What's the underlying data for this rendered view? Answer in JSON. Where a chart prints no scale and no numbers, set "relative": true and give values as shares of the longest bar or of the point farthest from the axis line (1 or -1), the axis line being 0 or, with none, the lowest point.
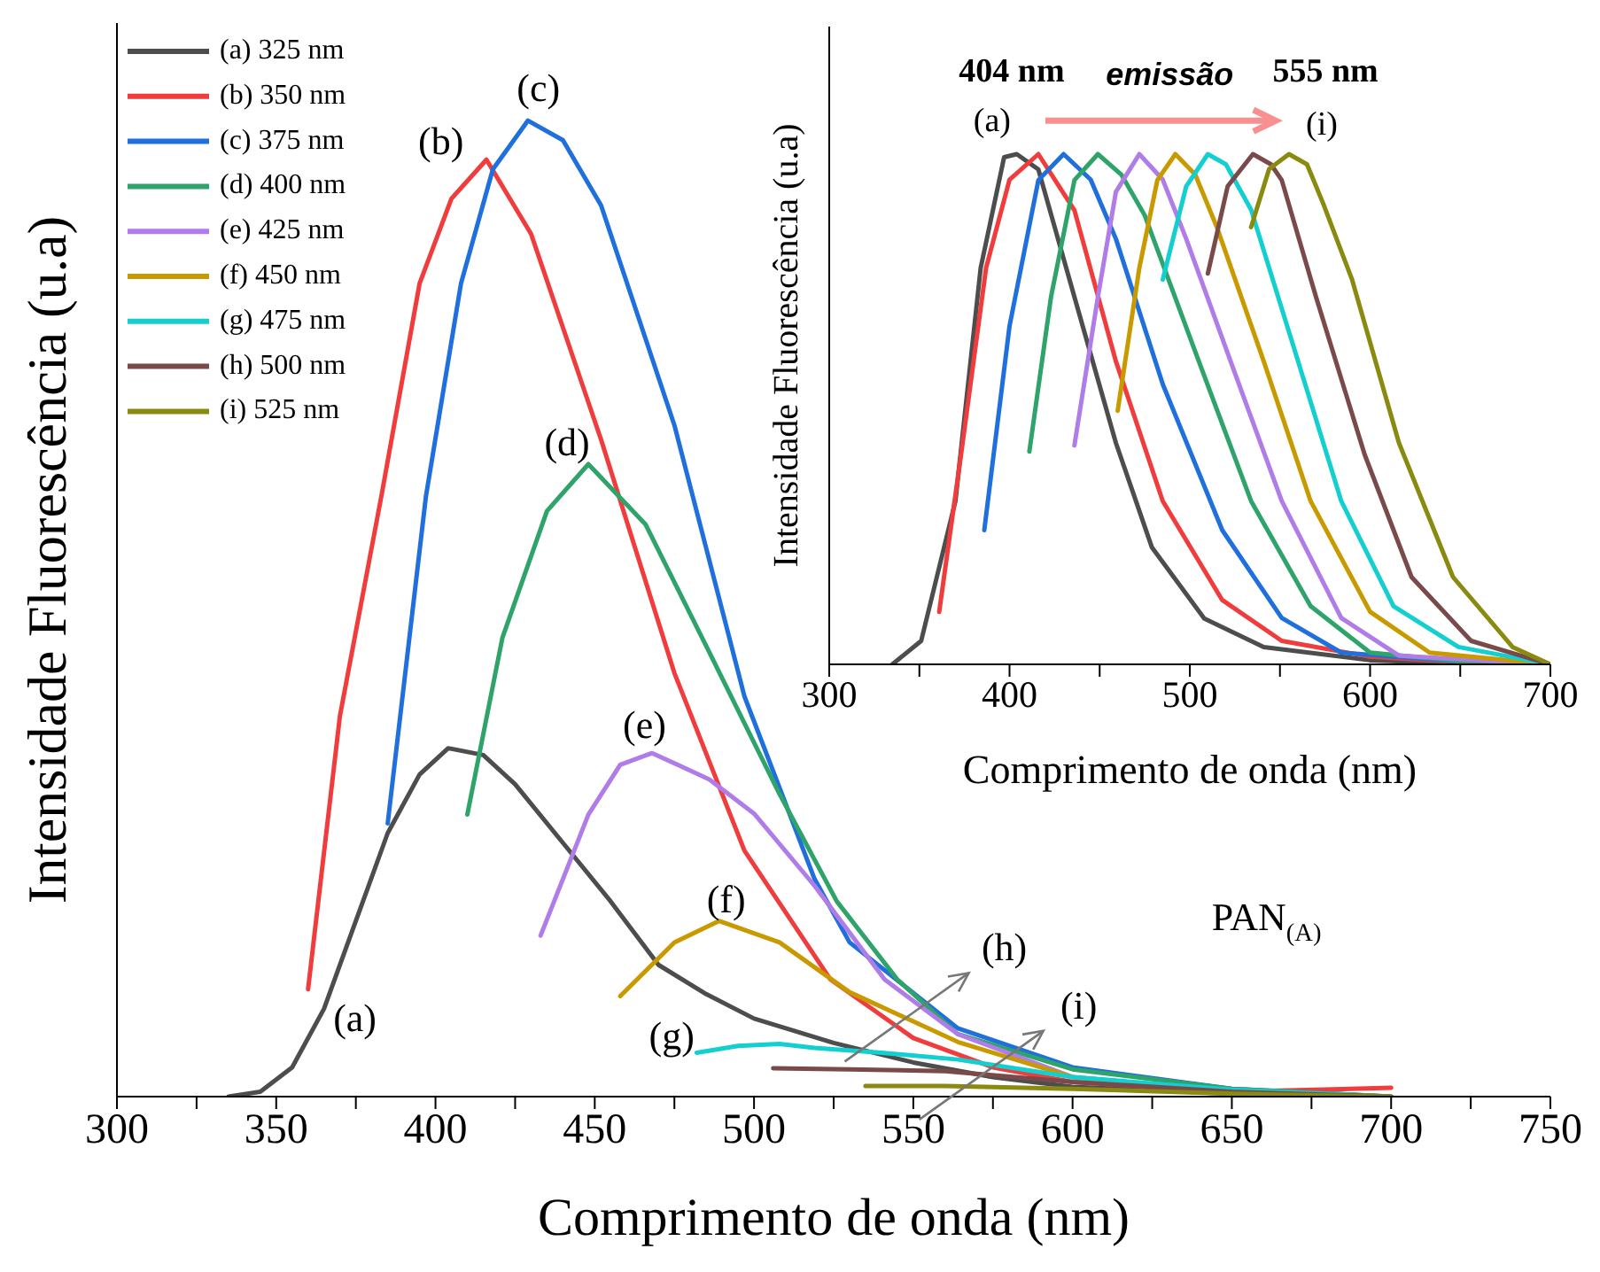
{
  "chart_data": [
    {
      "type": "line",
      "xlabel": "Comprimento de onda (nm)",
      "ylabel": "Intensidade Fluorescência (u.a)",
      "relative": true,
      "legend": "top left",
      "xlim": [
        300,
        750
      ],
      "xticks": [
        300,
        {
          "value": 325,
          "label": null
        },
        350,
        {
          "value": 375,
          "label": null
        },
        400,
        {
          "value": 425,
          "label": null
        },
        450,
        {
          "value": 475,
          "label": null
        },
        500,
        {
          "value": 525,
          "label": null
        },
        550,
        {
          "value": 575,
          "label": null
        },
        600,
        {
          "value": 625,
          "label": null
        },
        650,
        {
          "value": 675,
          "label": null
        },
        700,
        {
          "value": 725,
          "label": null
        },
        750
      ],
      "series": [
        {
          "name": "(a) 325 nm",
          "color": "#4d4d4d",
          "x": [
            335,
            345,
            355,
            365,
            375,
            385,
            395,
            404,
            415,
            425,
            440,
            455,
            470,
            485,
            500,
            525,
            550,
            575,
            600,
            650,
            700
          ],
          "values": [
            0,
            0.005,
            0.03,
            0.09,
            0.18,
            0.27,
            0.33,
            0.357,
            0.35,
            0.32,
            0.26,
            0.2,
            0.135,
            0.105,
            0.08,
            0.055,
            0.035,
            0.02,
            0.01,
            0.003,
            0
          ]
        },
        {
          "name": "(b) 350 nm",
          "color": "#f03c3c",
          "x": [
            360,
            370,
            383,
            395,
            405,
            416,
            430,
            452,
            475,
            497,
            524,
            550,
            575,
            600,
            650,
            700
          ],
          "values": [
            0.11,
            0.39,
            0.615,
            0.833,
            0.92,
            0.96,
            0.884,
            0.673,
            0.434,
            0.252,
            0.12,
            0.06,
            0.03,
            0.015,
            0.005,
            0.009
          ]
        },
        {
          "name": "(c) 375 nm",
          "color": "#1f6fdc",
          "x": [
            385,
            397,
            408,
            418,
            429,
            440,
            452,
            475,
            497,
            519,
            530,
            564,
            600,
            650,
            700
          ],
          "values": [
            0.28,
            0.615,
            0.833,
            0.95,
            1,
            0.98,
            0.913,
            0.688,
            0.41,
            0.223,
            0.158,
            0.07,
            0.03,
            0.008,
            0
          ]
        },
        {
          "name": "(d) 400 nm",
          "color": "#2ea36a",
          "x": [
            410,
            421,
            435,
            448,
            466,
            486,
            508,
            526,
            545,
            564,
            600,
            650,
            700
          ],
          "values": [
            0.289,
            0.47,
            0.6,
            0.648,
            0.586,
            0.455,
            0.31,
            0.2,
            0.12,
            0.064,
            0.028,
            0.008,
            0
          ]
        },
        {
          "name": "(e) 425 nm",
          "color": "#b07ce8",
          "x": [
            433,
            448,
            458,
            468,
            486,
            500,
            519,
            541,
            564,
            600,
            650,
            700
          ],
          "values": [
            0.165,
            0.289,
            0.34,
            0.352,
            0.325,
            0.29,
            0.216,
            0.12,
            0.064,
            0.02,
            0.005,
            0
          ]
        },
        {
          "name": "(f) 450 nm",
          "color": "#c99a00",
          "x": [
            458,
            475,
            489,
            508,
            530,
            564,
            600,
            650,
            700
          ],
          "values": [
            0.103,
            0.158,
            0.18,
            0.158,
            0.107,
            0.056,
            0.02,
            0.005,
            0
          ]
        },
        {
          "name": "(g) 475 nm",
          "color": "#14cfcf",
          "x": [
            482,
            495,
            508,
            519,
            540,
            564,
            600,
            650,
            700
          ],
          "values": [
            0.045,
            0.052,
            0.054,
            0.05,
            0.045,
            0.038,
            0.02,
            0.007,
            0
          ]
        },
        {
          "name": "(h) 500 nm",
          "color": "#7a4a4a",
          "x": [
            506,
            530,
            560,
            600,
            650,
            700
          ],
          "values": [
            0.029,
            0.028,
            0.026,
            0.015,
            0.005,
            0
          ]
        },
        {
          "name": "(i) 525 nm",
          "color": "#8a8a10",
          "x": [
            535,
            560,
            600,
            650,
            700
          ],
          "values": [
            0.011,
            0.011,
            0.008,
            0.003,
            0
          ]
        }
      ],
      "annotations": [
        "(a)",
        "(b)",
        "(c)",
        "(d)",
        "(e)",
        "(f)",
        "(g)",
        "(h)",
        "(i)",
        "PAN$_{(A)}$"
      ]
    },
    {
      "type": "line",
      "xlabel": "Comprimento de onda (nm)",
      "ylabel": "Intensidade Fluorescência (u.a)",
      "relative": true,
      "xlim": [
        300,
        700
      ],
      "xticks": [
        300,
        {
          "value": 350,
          "label": null
        },
        400,
        {
          "value": 450,
          "label": null
        },
        500,
        {
          "value": 550,
          "label": null
        },
        600,
        {
          "value": 650,
          "label": null
        },
        700
      ],
      "series": [
        {
          "color": "#4d4d4d",
          "x": [
            335,
            351,
            370,
            384,
            397,
            404,
            416,
            436,
            459,
            479,
            508,
            541,
            600,
            650,
            700
          ],
          "values": [
            0,
            0.046,
            0.32,
            0.777,
            0.994,
            1,
            0.97,
            0.72,
            0.434,
            0.229,
            0.09,
            0.034,
            0.008,
            0.002,
            0
          ]
        },
        {
          "color": "#f03c3c",
          "x": [
            361,
            374,
            387,
            400,
            416,
            436,
            459,
            485,
            518,
            551,
            600,
            650,
            700
          ],
          "values": [
            0.103,
            0.434,
            0.777,
            0.95,
            1,
            0.89,
            0.594,
            0.32,
            0.126,
            0.046,
            0.015,
            0.004,
            0
          ]
        },
        {
          "color": "#1f6fdc",
          "x": [
            386,
            400,
            416,
            430,
            445,
            459,
            485,
            518,
            551,
            584,
            650,
            700
          ],
          "values": [
            0.263,
            0.663,
            0.949,
            1,
            0.95,
            0.834,
            0.549,
            0.263,
            0.091,
            0.023,
            0.005,
            0
          ]
        },
        {
          "color": "#2ea36a",
          "x": [
            411,
            423,
            436,
            449,
            462,
            475,
            505,
            534,
            567,
            600,
            650,
            700
          ],
          "values": [
            0.417,
            0.72,
            0.949,
            1,
            0.96,
            0.88,
            0.594,
            0.32,
            0.114,
            0.023,
            0.006,
            0
          ]
        },
        {
          "color": "#b07ce8",
          "x": [
            436,
            449,
            459,
            472,
            485,
            498,
            525,
            551,
            584,
            616,
            700
          ],
          "values": [
            0.429,
            0.72,
            0.926,
            1,
            0.95,
            0.834,
            0.571,
            0.32,
            0.091,
            0.017,
            0
          ]
        },
        {
          "color": "#c99a00",
          "x": [
            460,
            472,
            482,
            492,
            503,
            515,
            541,
            567,
            600,
            633,
            700
          ],
          "values": [
            0.497,
            0.777,
            0.949,
            1,
            0.96,
            0.857,
            0.594,
            0.32,
            0.103,
            0.023,
            0
          ]
        },
        {
          "color": "#14cfcf",
          "x": [
            485,
            498,
            510,
            520,
            534,
            557,
            584,
            613,
            649,
            700
          ],
          "values": [
            0.754,
            0.937,
            1,
            0.98,
            0.891,
            0.629,
            0.32,
            0.114,
            0.034,
            0
          ]
        },
        {
          "color": "#7a4a4a",
          "x": [
            510,
            521,
            535,
            545,
            551,
            570,
            597,
            623,
            656,
            700
          ],
          "values": [
            0.766,
            0.937,
            1,
            0.98,
            0.949,
            0.72,
            0.411,
            0.171,
            0.046,
            0
          ]
        },
        {
          "color": "#8a8a10",
          "x": [
            534,
            544,
            555,
            565,
            574,
            590,
            616,
            646,
            679,
            700
          ],
          "values": [
            0.857,
            0.971,
            1,
            0.98,
            0.903,
            0.754,
            0.434,
            0.171,
            0.034,
            0
          ]
        }
      ],
      "annotations": [
        "404 nm",
        "emissão",
        "555 nm",
        "(a)",
        "(i)"
      ]
    }
  ]
}
